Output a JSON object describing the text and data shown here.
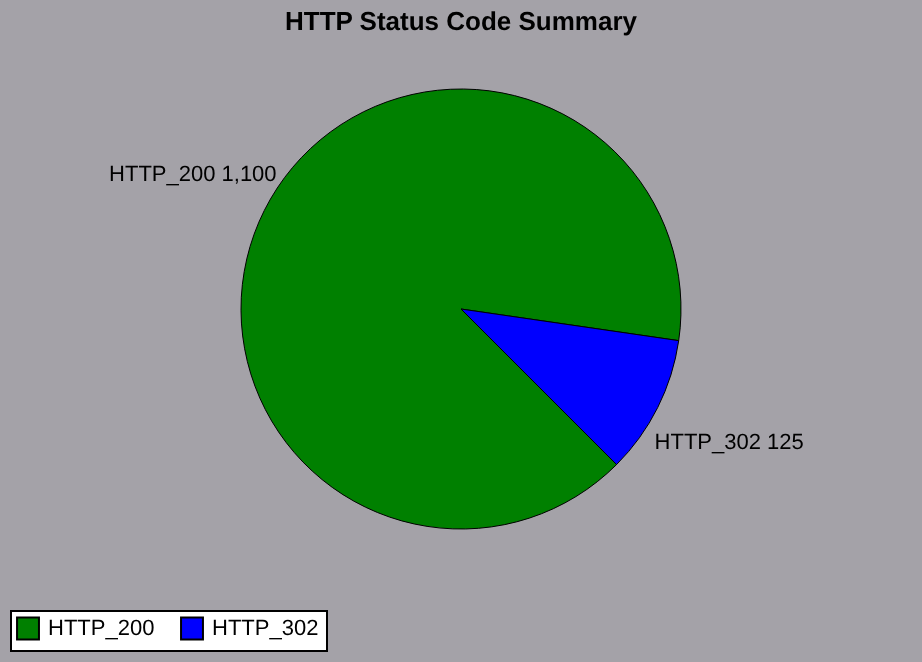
{
  "chart_data": {
    "type": "pie",
    "title": "HTTP Status Code Summary",
    "categories": [
      "HTTP_200",
      "HTTP_302"
    ],
    "values": [
      1100,
      125
    ],
    "colors": [
      "#008000",
      "#0000ff"
    ],
    "value_labels": [
      "1,100",
      "125"
    ],
    "legend": "bottom"
  }
}
